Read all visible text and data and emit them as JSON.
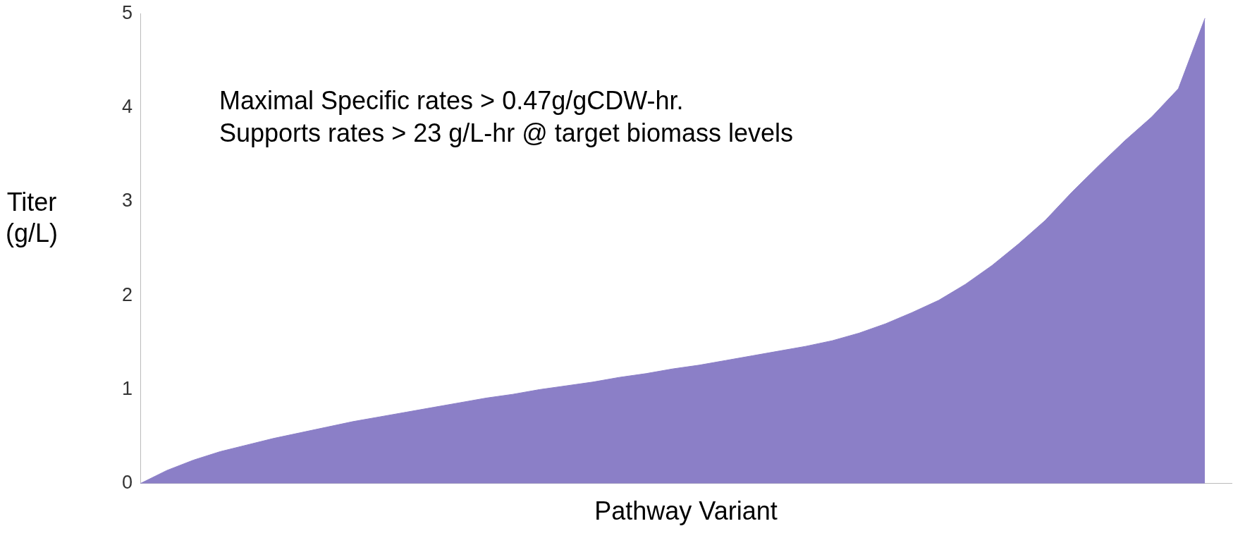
{
  "chart_data": {
    "type": "area",
    "ylabel": "Titer\n(g/L)",
    "xlabel": "Pathway Variant",
    "categories": [
      null,
      null,
      null,
      null,
      null,
      null,
      null,
      null,
      null,
      null,
      null,
      null,
      null,
      null,
      null,
      null,
      null,
      null,
      null,
      null,
      null,
      null,
      null,
      null,
      null,
      null,
      null,
      null,
      null,
      null,
      null,
      null,
      null,
      null,
      null,
      null,
      null,
      null,
      null,
      null,
      null,
      null
    ],
    "values": [
      0,
      0.14,
      0.25,
      0.34,
      0.41,
      0.48,
      0.54,
      0.6,
      0.66,
      0.71,
      0.76,
      0.81,
      0.86,
      0.91,
      0.95,
      1.0,
      1.04,
      1.08,
      1.13,
      1.17,
      1.22,
      1.26,
      1.31,
      1.36,
      1.41,
      1.46,
      1.52,
      1.6,
      1.7,
      1.82,
      1.95,
      2.12,
      2.32,
      2.55,
      2.8,
      3.1,
      3.38,
      3.65,
      3.9,
      4.2,
      4.95,
      null
    ],
    "color": "#8b7fc7",
    "ylim": [
      0,
      5
    ],
    "yticks": [
      0,
      1,
      2,
      3,
      4,
      5
    ],
    "annotations": [
      "Maximal Specific rates > 0.47g/gCDW-hr.",
      "Supports rates > 23 g/L-hr @ target biomass levels"
    ]
  }
}
